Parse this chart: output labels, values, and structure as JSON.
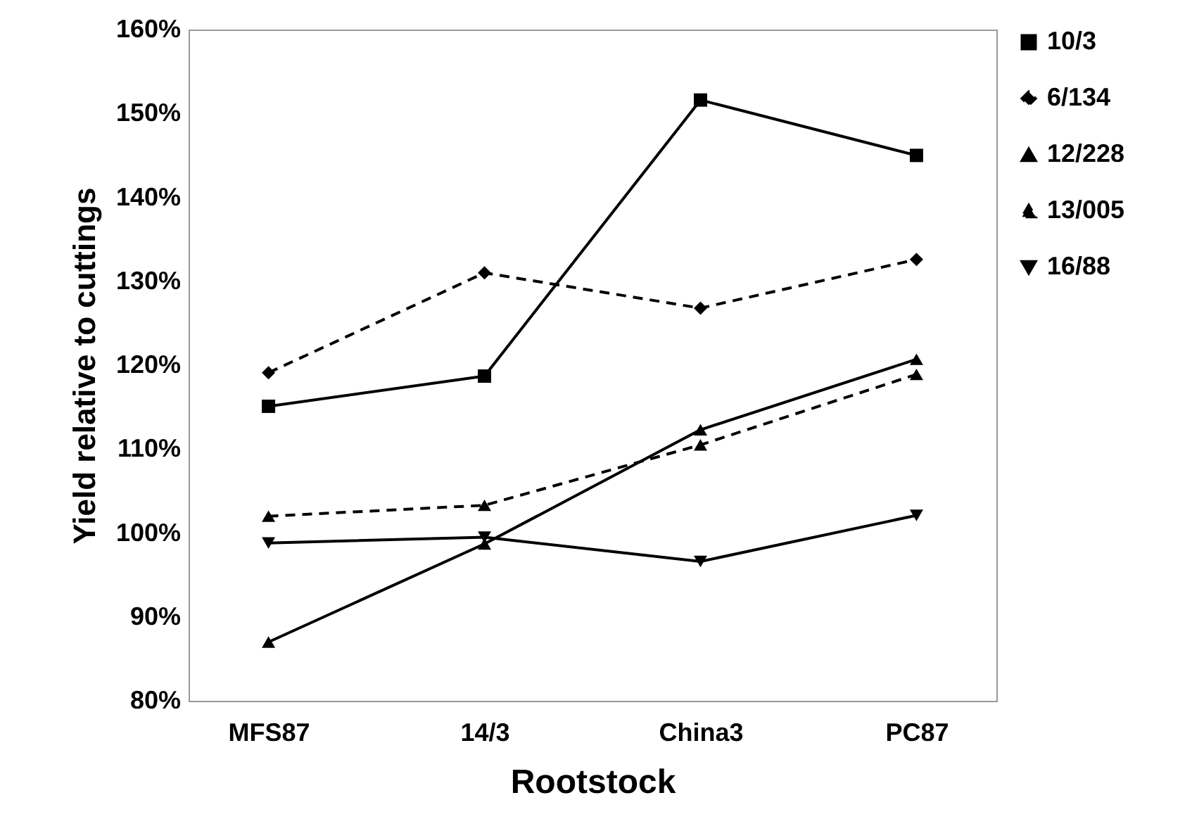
{
  "chart_data": {
    "type": "line",
    "xlabel": "Rootstock",
    "ylabel": "Yield relative to cuttings",
    "categories": [
      "MFS87",
      "14/3",
      "China3",
      "PC87"
    ],
    "series": [
      {
        "name": "10/3",
        "color": "#000000",
        "marker": "square",
        "line_style": "solid",
        "values": [
          115.1,
          118.7,
          151.6,
          145.0
        ]
      },
      {
        "name": "6/134",
        "color": "#000000",
        "marker": "diamond",
        "line_style": "dashed",
        "values": [
          119.1,
          131.0,
          126.8,
          132.6
        ]
      },
      {
        "name": "12/228",
        "color": "#000000",
        "marker": "triangle",
        "line_style": "solid",
        "values": [
          87.0,
          98.7,
          112.3,
          120.7
        ]
      },
      {
        "name": "13/005",
        "color": "#000000",
        "marker": "triangle",
        "line_style": "dashed",
        "values": [
          102.0,
          103.3,
          110.5,
          118.9
        ]
      },
      {
        "name": "16/88",
        "color": "#000000",
        "marker": "triangle-down",
        "line_style": "solid",
        "values": [
          98.8,
          99.5,
          96.6,
          102.1
        ]
      }
    ],
    "ylim": [
      80,
      160
    ],
    "yticks": [
      {
        "value": 80,
        "label": "80%"
      },
      {
        "value": 90,
        "label": "90%"
      },
      {
        "value": 100,
        "label": "100%"
      },
      {
        "value": 110,
        "label": "110%"
      },
      {
        "value": 120,
        "label": "120%"
      },
      {
        "value": 130,
        "label": "130%"
      },
      {
        "value": 140,
        "label": "140%"
      },
      {
        "value": 150,
        "label": "150%"
      },
      {
        "value": 160,
        "label": "160%"
      }
    ],
    "grid": false,
    "legend": "right"
  }
}
